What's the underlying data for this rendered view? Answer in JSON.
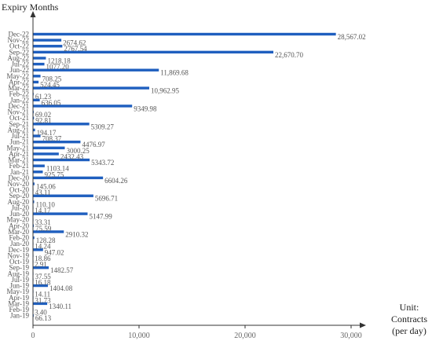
{
  "chart_data": {
    "type": "bar",
    "orientation": "horizontal",
    "ylabel": "Expiry Months",
    "unit_lines": [
      "Unit:",
      "Contracts",
      "(per day)"
    ],
    "xlim": [
      0,
      30000
    ],
    "xticks": [
      {
        "value": 0,
        "label": "0"
      },
      {
        "value": 10000,
        "label": "10,000"
      },
      {
        "value": 20000,
        "label": "20,000"
      },
      {
        "value": 30000,
        "label": "30,000"
      }
    ],
    "bar_color": "#1f5fbf",
    "grid": false,
    "categories": [
      "Dec-22",
      "Nov-22",
      "Oct-22",
      "Sep-22",
      "Aug-22",
      "Jul-22",
      "Jun-22",
      "May-22",
      "Apr-22",
      "Mar-22",
      "Feb-22",
      "Jan-22",
      "Dec-21",
      "Nov-21",
      "Oct-21",
      "Sep-21",
      "Aug-21",
      "Jul-21",
      "Jun-21",
      "May-21",
      "Apr-21",
      "Mar-21",
      "Feb-21",
      "Jan-21",
      "Dec-20",
      "Nov-20",
      "Oct-20",
      "Sep-20",
      "Aug-20",
      "Jul-20",
      "Jun-20",
      "May-20",
      "Apr-20",
      "Mar-20",
      "Feb-20",
      "Jan-20",
      "Dec-19",
      "Nov-19",
      "Oct-19",
      "Sep-19",
      "Aug-19",
      "Jul-19",
      "Jun-19",
      "May-19",
      "Apr-19",
      "Mar-19",
      "Feb-19",
      "Jan-19"
    ],
    "values": [
      28567.02,
      2674.62,
      2767.54,
      22670.7,
      1218.18,
      1077.2,
      11869.68,
      708.25,
      524.45,
      10962.95,
      61.23,
      636.05,
      9349.98,
      69.02,
      92.81,
      5309.27,
      194.17,
      708.37,
      4476.97,
      3000.25,
      2432.43,
      5343.72,
      1103.14,
      925.75,
      6604.26,
      145.06,
      43.11,
      5696.71,
      110.1,
      14.17,
      5147.99,
      33.31,
      75.59,
      2910.32,
      128.28,
      14.24,
      947.02,
      18.86,
      2.91,
      1482.57,
      37.55,
      16.18,
      1404.08,
      14.11,
      31.73,
      1340.11,
      3.4,
      66.13
    ],
    "value_labels": [
      "28,567.02",
      "2674.62",
      "2767.54",
      "22,670.70",
      "1218.18",
      "1077.20",
      "11,869.68",
      "708.25",
      "524.45",
      "10,962.95",
      "61.23",
      "636.05",
      "9349.98",
      "69.02",
      "92.81",
      "5309.27",
      "194.17",
      "708.37",
      "4476.97",
      "3000.25",
      "2432.43",
      "5343.72",
      "1103.14",
      "925.75",
      "6604.26",
      "145.06",
      "43.11",
      "5696.71",
      "110.10",
      "14.17",
      "5147.99",
      "33.31",
      "75.59",
      "2910.32",
      "128.28",
      "14.24",
      "947.02",
      "18.86",
      "2.91",
      "1482.57",
      "37.55",
      "16.18",
      "1404.08",
      "14.11",
      "31.73",
      "1340.11",
      "3.40",
      "66.13"
    ]
  }
}
